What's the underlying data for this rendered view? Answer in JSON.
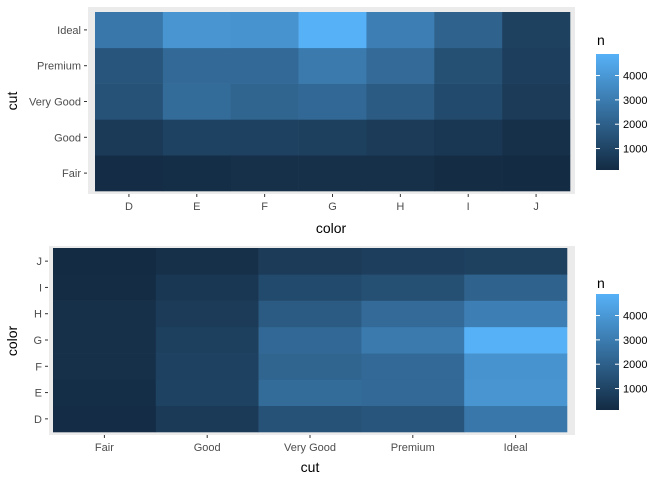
{
  "scale": {
    "low": "#132B43",
    "high": "#56B1F7"
  },
  "chart_data": [
    {
      "type": "heatmap",
      "x_name": "color",
      "y_name": "cut",
      "x": [
        "D",
        "E",
        "F",
        "G",
        "H",
        "I",
        "J"
      ],
      "y": [
        "Fair",
        "Good",
        "Very Good",
        "Premium",
        "Ideal"
      ],
      "xlabel": "color",
      "ylabel": "cut",
      "values": [
        [
          163,
          224,
          312,
          314,
          303,
          175,
          119
        ],
        [
          662,
          933,
          909,
          871,
          702,
          522,
          307
        ],
        [
          1513,
          2400,
          2164,
          2299,
          1824,
          1204,
          678
        ],
        [
          1603,
          2337,
          2331,
          2924,
          2360,
          1428,
          808
        ],
        [
          2834,
          3903,
          3826,
          4884,
          3115,
          2093,
          896
        ]
      ],
      "legend": {
        "title": "n",
        "breaks": [
          1000,
          2000,
          3000,
          4000
        ],
        "range": [
          119,
          4884
        ]
      }
    },
    {
      "type": "heatmap",
      "x_name": "cut",
      "y_name": "color",
      "x": [
        "Fair",
        "Good",
        "Very Good",
        "Premium",
        "Ideal"
      ],
      "y": [
        "D",
        "E",
        "F",
        "G",
        "H",
        "I",
        "J"
      ],
      "xlabel": "cut",
      "ylabel": "color",
      "values": [
        [
          163,
          662,
          1513,
          1603,
          2834
        ],
        [
          224,
          933,
          2400,
          2337,
          3903
        ],
        [
          312,
          909,
          2164,
          2331,
          3826
        ],
        [
          314,
          871,
          2299,
          2924,
          4884
        ],
        [
          303,
          702,
          1824,
          2360,
          3115
        ],
        [
          175,
          522,
          1204,
          1428,
          2093
        ],
        [
          119,
          307,
          678,
          808,
          896
        ]
      ],
      "legend": {
        "title": "n",
        "breaks": [
          1000,
          2000,
          3000,
          4000
        ],
        "range": [
          119,
          4884
        ]
      }
    }
  ]
}
